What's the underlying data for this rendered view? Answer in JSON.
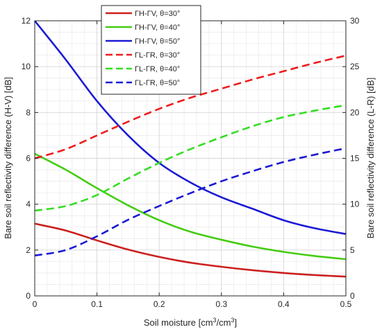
{
  "chart_data": {
    "type": "line",
    "title": "",
    "xlabel": "Soil moisture [cm³/cm³]",
    "ylabel_left": "Bare soil reflectivity difference (H-V) [dB]",
    "ylabel_right": "Bare soil reflectivity difference (L-R) [dB]",
    "xlim": [
      0,
      0.5
    ],
    "ylim_left": [
      0,
      12
    ],
    "ylim_right": [
      0,
      30
    ],
    "xticks": [
      "0",
      "0.1",
      "0.2",
      "0.3",
      "0.4",
      "0.5"
    ],
    "yticks_left": [
      "0",
      "2",
      "4",
      "6",
      "8",
      "10",
      "12"
    ],
    "yticks_right": [
      "0",
      "5",
      "10",
      "15",
      "20",
      "25",
      "30"
    ],
    "grid": true,
    "legend_position": "top-center",
    "x": [
      0,
      0.05,
      0.1,
      0.15,
      0.2,
      0.25,
      0.3,
      0.35,
      0.4,
      0.45,
      0.5
    ],
    "series": [
      {
        "name": "ΓH-ΓV, θ=30°",
        "axis": "left",
        "color": "#cc1f1f",
        "dash": "solid",
        "values": [
          3.15,
          2.85,
          2.42,
          2.02,
          1.7,
          1.45,
          1.27,
          1.12,
          1.0,
          0.91,
          0.84
        ]
      },
      {
        "name": "ΓH-ΓV, θ=40°",
        "axis": "left",
        "color": "#44cc11",
        "dash": "solid",
        "values": [
          6.2,
          5.5,
          4.7,
          3.95,
          3.3,
          2.8,
          2.45,
          2.15,
          1.92,
          1.74,
          1.6
        ]
      },
      {
        "name": "ΓH-ΓV, θ=50°",
        "axis": "left",
        "color": "#1a1ad4",
        "dash": "solid",
        "values": [
          12.0,
          10.3,
          8.5,
          7.0,
          5.8,
          4.95,
          4.3,
          3.8,
          3.3,
          2.95,
          2.7
        ]
      },
      {
        "name": "ΓL-ΓR, θ=30°",
        "axis": "right",
        "color": "#ee1c1c",
        "dash": "dashed",
        "values": [
          15.0,
          16.0,
          17.5,
          19.0,
          20.4,
          21.6,
          22.6,
          23.6,
          24.5,
          25.4,
          26.2
        ]
      },
      {
        "name": "ΓL-ΓR, θ=40°",
        "axis": "right",
        "color": "#33dd22",
        "dash": "dashed",
        "values": [
          9.3,
          9.8,
          11.0,
          12.8,
          14.5,
          16.0,
          17.3,
          18.5,
          19.5,
          20.2,
          20.8
        ]
      },
      {
        "name": "ΓL-ΓR, θ=50°",
        "axis": "right",
        "color": "#1a1ad4",
        "dash": "dashed",
        "values": [
          4.4,
          5.0,
          6.5,
          8.3,
          9.8,
          11.2,
          12.5,
          13.6,
          14.6,
          15.4,
          16.1
        ]
      }
    ]
  }
}
